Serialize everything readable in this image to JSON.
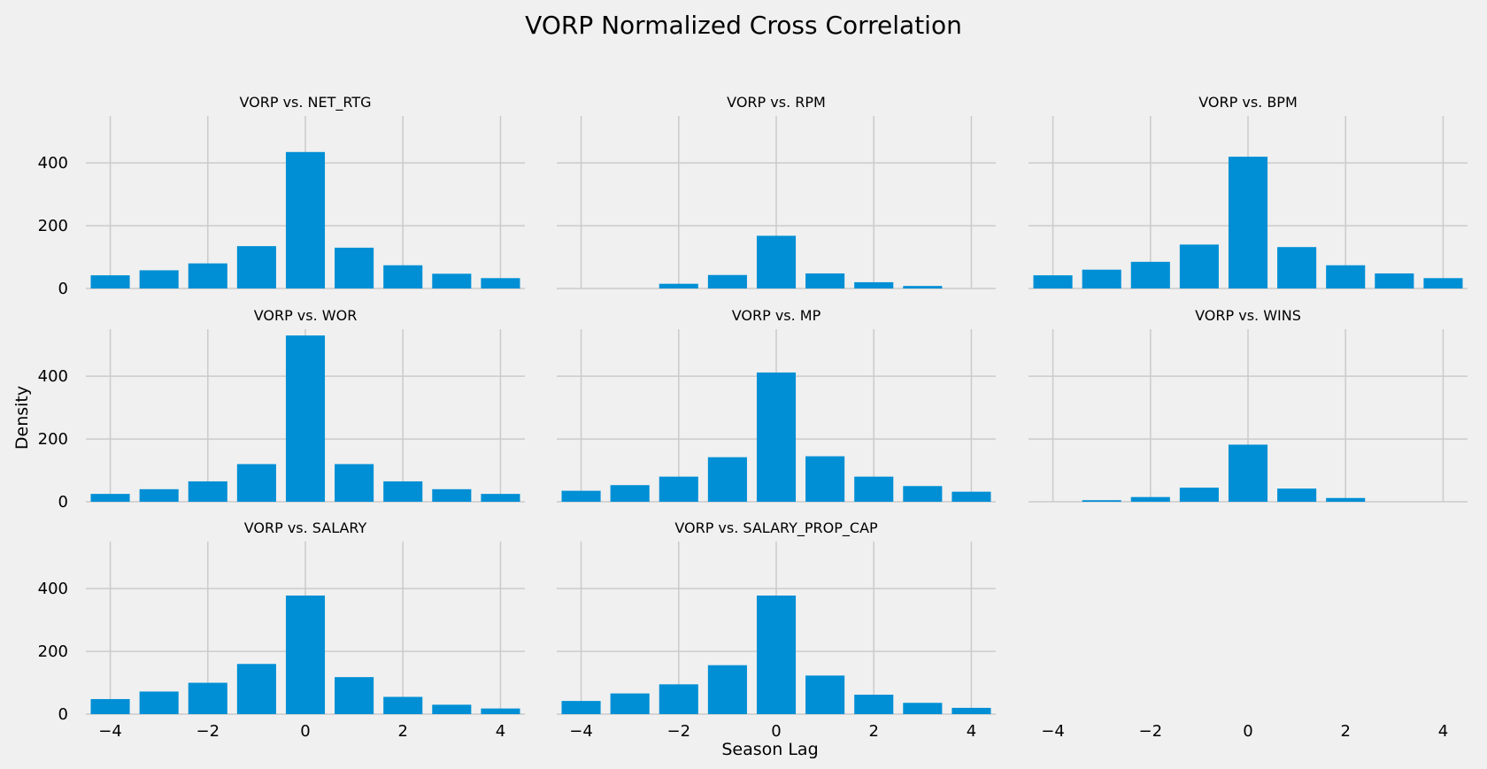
{
  "figure": {
    "title": "VORP Normalized Cross Correlation",
    "xlabel": "Season Lag",
    "ylabel": "Density",
    "bar_color": "#008fd5",
    "background": "#f0f0f0",
    "grid_color": "#cbcbcb"
  },
  "chart_data": [
    {
      "type": "bar",
      "title": "VORP vs. NET_RTG",
      "x": [
        -4,
        -3,
        -2,
        -1,
        0,
        1,
        2,
        3,
        4
      ],
      "values": [
        42,
        58,
        80,
        135,
        435,
        130,
        74,
        47,
        33
      ],
      "xlim": [
        -4.5,
        4.5
      ],
      "ylim": [
        0,
        550
      ],
      "xticks": [
        -4,
        -2,
        0,
        2,
        4
      ],
      "yticks": [
        0,
        200,
        400
      ],
      "show_xticklabels": false,
      "show_yticklabels": true,
      "grid": true
    },
    {
      "type": "bar",
      "title": "VORP vs. RPM",
      "x": [
        -4,
        -3,
        -2,
        -1,
        0,
        1,
        2,
        3,
        4
      ],
      "values": [
        0,
        0,
        15,
        43,
        168,
        48,
        20,
        8,
        0
      ],
      "xlim": [
        -4.5,
        4.5
      ],
      "ylim": [
        0,
        550
      ],
      "xticks": [
        -4,
        -2,
        0,
        2,
        4
      ],
      "yticks": [
        0,
        200,
        400
      ],
      "show_xticklabels": false,
      "show_yticklabels": false,
      "grid": true
    },
    {
      "type": "bar",
      "title": "VORP vs. BPM",
      "x": [
        -4,
        -3,
        -2,
        -1,
        0,
        1,
        2,
        3,
        4
      ],
      "values": [
        42,
        60,
        85,
        140,
        420,
        132,
        74,
        48,
        33
      ],
      "xlim": [
        -4.5,
        4.5
      ],
      "ylim": [
        0,
        550
      ],
      "xticks": [
        -4,
        -2,
        0,
        2,
        4
      ],
      "yticks": [
        0,
        200,
        400
      ],
      "show_xticklabels": false,
      "show_yticklabels": false,
      "grid": true
    },
    {
      "type": "bar",
      "title": "VORP vs. WOR",
      "x": [
        -4,
        -3,
        -2,
        -1,
        0,
        1,
        2,
        3,
        4
      ],
      "values": [
        25,
        40,
        65,
        120,
        530,
        120,
        65,
        40,
        25
      ],
      "xlim": [
        -4.5,
        4.5
      ],
      "ylim": [
        0,
        550
      ],
      "xticks": [
        -4,
        -2,
        0,
        2,
        4
      ],
      "yticks": [
        0,
        200,
        400
      ],
      "show_xticklabels": false,
      "show_yticklabels": true,
      "grid": true
    },
    {
      "type": "bar",
      "title": "VORP vs. MP",
      "x": [
        -4,
        -3,
        -2,
        -1,
        0,
        1,
        2,
        3,
        4
      ],
      "values": [
        35,
        53,
        80,
        142,
        412,
        145,
        80,
        50,
        32
      ],
      "xlim": [
        -4.5,
        4.5
      ],
      "ylim": [
        0,
        550
      ],
      "xticks": [
        -4,
        -2,
        0,
        2,
        4
      ],
      "yticks": [
        0,
        200,
        400
      ],
      "show_xticklabels": false,
      "show_yticklabels": false,
      "grid": true
    },
    {
      "type": "bar",
      "title": "VORP vs. WINS",
      "x": [
        -4,
        -3,
        -2,
        -1,
        0,
        1,
        2,
        3,
        4
      ],
      "values": [
        0,
        5,
        15,
        45,
        182,
        42,
        12,
        0,
        0
      ],
      "xlim": [
        -4.5,
        4.5
      ],
      "ylim": [
        0,
        550
      ],
      "xticks": [
        -4,
        -2,
        0,
        2,
        4
      ],
      "yticks": [
        0,
        200,
        400
      ],
      "show_xticklabels": false,
      "show_yticklabels": false,
      "grid": true
    },
    {
      "type": "bar",
      "title": "VORP vs. SALARY",
      "x": [
        -4,
        -3,
        -2,
        -1,
        0,
        1,
        2,
        3,
        4
      ],
      "values": [
        48,
        72,
        100,
        160,
        378,
        118,
        55,
        30,
        18
      ],
      "xlim": [
        -4.5,
        4.5
      ],
      "ylim": [
        0,
        550
      ],
      "xticks": [
        -4,
        -2,
        0,
        2,
        4
      ],
      "yticks": [
        0,
        200,
        400
      ],
      "show_xticklabels": true,
      "show_yticklabels": true,
      "grid": true
    },
    {
      "type": "bar",
      "title": "VORP vs. SALARY_PROP_CAP",
      "x": [
        -4,
        -3,
        -2,
        -1,
        0,
        1,
        2,
        3,
        4
      ],
      "values": [
        42,
        66,
        95,
        156,
        378,
        123,
        62,
        36,
        20
      ],
      "xlim": [
        -4.5,
        4.5
      ],
      "ylim": [
        0,
        550
      ],
      "xticks": [
        -4,
        -2,
        0,
        2,
        4
      ],
      "yticks": [
        0,
        200,
        400
      ],
      "show_xticklabels": true,
      "show_yticklabels": false,
      "grid": true
    },
    {
      "type": "bar",
      "title": "",
      "x": [],
      "values": [],
      "xlim": [
        -4.5,
        4.5
      ],
      "ylim": [
        0,
        550
      ],
      "xticks": [
        -4,
        -2,
        0,
        2,
        4
      ],
      "yticks": [],
      "show_xticklabels": true,
      "show_yticklabels": false,
      "grid": false,
      "empty": true
    }
  ]
}
